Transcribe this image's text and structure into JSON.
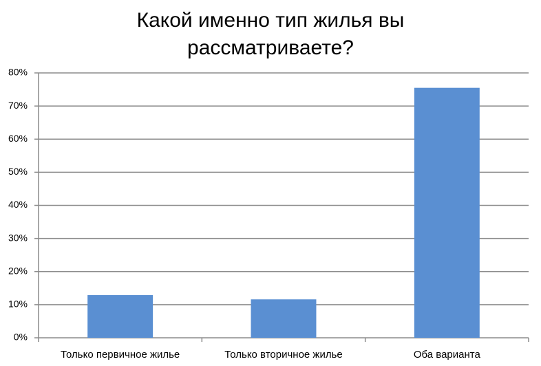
{
  "chart_data": {
    "type": "bar",
    "title": "Какой именно тип жилья вы рассматриваете?",
    "categories": [
      "Только первичное жилье",
      "Только вторичное жилье",
      "Оба варианта"
    ],
    "values": [
      12.9,
      11.6,
      75.5
    ],
    "color": "#5a8fd2",
    "ylim": [
      0,
      80
    ],
    "yticks": [
      {
        "value": 0,
        "label": "0%"
      },
      {
        "value": 10,
        "label": "10%"
      },
      {
        "value": 20,
        "label": "20%"
      },
      {
        "value": 30,
        "label": "30%"
      },
      {
        "value": 40,
        "label": "40%"
      },
      {
        "value": 50,
        "label": "50%"
      },
      {
        "value": 60,
        "label": "60%"
      },
      {
        "value": 70,
        "label": "70%"
      },
      {
        "value": 80,
        "label": "80%"
      }
    ],
    "grid": true
  }
}
